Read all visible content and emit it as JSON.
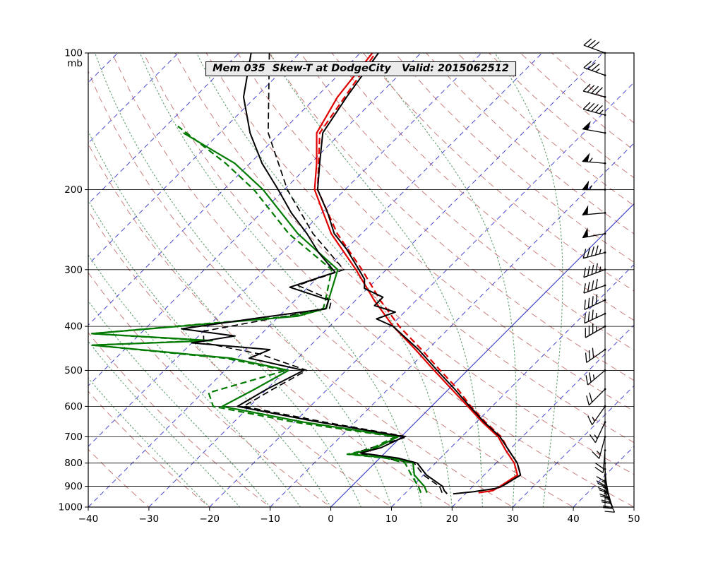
{
  "title": "Mem 035  Skew-T at DodgeCity   Valid: 2015062512",
  "axes": {
    "pressure_unit": "mb",
    "pressure_ticks": [
      100,
      200,
      300,
      400,
      500,
      600,
      700,
      800,
      900,
      1000
    ],
    "temp_ticks": [
      -40,
      -30,
      -20,
      -10,
      0,
      10,
      20,
      30,
      40,
      50
    ],
    "pressure_range": [
      100,
      1000
    ],
    "temp_range_c": [
      -40,
      50
    ],
    "skew_degrees": 45
  },
  "style": {
    "background": "#ffffff",
    "border_color": "#000000",
    "isotherm_color": "#4848d0",
    "dry_adiabat_color": "#c47272",
    "moist_adiabat_color": "#5f9e6e",
    "pressure_line_color": "#000000",
    "temperature_color": "#e00000",
    "dewpoint_color": "#007a00",
    "member_black_color": "#000000"
  },
  "background_lines": {
    "isotherms_c": [
      -110,
      -100,
      -90,
      -80,
      -70,
      -60,
      -50,
      -40,
      -30,
      -20,
      -10,
      0,
      10,
      20,
      30,
      40,
      50
    ],
    "isotherm_solid_c": 0,
    "dry_adiabats_c": [
      -30,
      -20,
      -10,
      0,
      10,
      20,
      30,
      40,
      50,
      60,
      70,
      80,
      90,
      100,
      110,
      120,
      130,
      140,
      150,
      160,
      170,
      180
    ],
    "moist_adiabats_c": [
      -20,
      -15,
      -10,
      -5,
      0,
      5,
      10,
      15,
      20,
      25,
      30,
      35
    ]
  },
  "chart_data": {
    "type": "line",
    "variant": "skew-t-log-p",
    "title": "Mem 035  Skew-T at DodgeCity   Valid: 2015062512",
    "xlabel_ticks_c": [
      -40,
      -30,
      -20,
      -10,
      0,
      10,
      20,
      30,
      40,
      50
    ],
    "ylabel_ticks_mb": [
      100,
      200,
      300,
      400,
      500,
      600,
      700,
      800,
      900,
      1000
    ],
    "series": [
      {
        "name": "temperature-mem035-solid",
        "color": "#e00000",
        "style": "solid",
        "points": [
          [
            930,
            22
          ],
          [
            920,
            24
          ],
          [
            900,
            24.5
          ],
          [
            850,
            25.5
          ],
          [
            800,
            23.0
          ],
          [
            750,
            19.5
          ],
          [
            700,
            16.0
          ],
          [
            650,
            11.0
          ],
          [
            600,
            6.0
          ],
          [
            550,
            0.5
          ],
          [
            500,
            -5.5
          ],
          [
            450,
            -12.0
          ],
          [
            400,
            -19.5
          ],
          [
            350,
            -27.0
          ],
          [
            300,
            -35.0
          ],
          [
            250,
            -45.0
          ],
          [
            200,
            -55.0
          ],
          [
            175,
            -59.0
          ],
          [
            150,
            -64.0
          ],
          [
            125,
            -66.5
          ],
          [
            100,
            -68.0
          ]
        ]
      },
      {
        "name": "temperature-mem035-dashed",
        "color": "#e00000",
        "style": "dashed",
        "points": [
          [
            925,
            23.5
          ],
          [
            900,
            24.8
          ],
          [
            850,
            26.0
          ],
          [
            800,
            23.5
          ],
          [
            750,
            20.0
          ],
          [
            700,
            16.5
          ],
          [
            650,
            11.5
          ],
          [
            600,
            6.5
          ],
          [
            550,
            1.5
          ],
          [
            500,
            -4.5
          ],
          [
            450,
            -11.0
          ],
          [
            400,
            -18.5
          ],
          [
            350,
            -26.0
          ],
          [
            300,
            -34.0
          ],
          [
            250,
            -44.0
          ],
          [
            200,
            -54.5
          ],
          [
            150,
            -63.5
          ],
          [
            100,
            -67.5
          ]
        ]
      },
      {
        "name": "dewpoint-mem035-solid",
        "color": "#007a00",
        "style": "solid",
        "points": [
          [
            930,
            13.5
          ],
          [
            900,
            12.0
          ],
          [
            850,
            8.5
          ],
          [
            800,
            6.3
          ],
          [
            780,
            2.0
          ],
          [
            765,
            -5.5
          ],
          [
            745,
            -2.5
          ],
          [
            700,
            -0.5
          ],
          [
            650,
            -18.5
          ],
          [
            600,
            -34.5
          ],
          [
            550,
            -32.0
          ],
          [
            500,
            -29.5
          ],
          [
            470,
            -41.0
          ],
          [
            440,
            -66.0
          ],
          [
            430,
            -47.0
          ],
          [
            415,
            -68.0
          ],
          [
            380,
            -37.0
          ],
          [
            365,
            -33.5
          ],
          [
            350,
            -34.5
          ],
          [
            300,
            -38.0
          ],
          [
            250,
            -50.5
          ],
          [
            200,
            -63.5
          ],
          [
            175,
            -72.5
          ],
          [
            150,
            -86.0
          ]
        ]
      },
      {
        "name": "dewpoint-mem035-dashed",
        "color": "#007a00",
        "style": "dashed",
        "points": [
          [
            930,
            12.5
          ],
          [
            900,
            11.0
          ],
          [
            850,
            8.0
          ],
          [
            800,
            5.0
          ],
          [
            780,
            1.0
          ],
          [
            765,
            -6.0
          ],
          [
            745,
            -3.0
          ],
          [
            700,
            -1.0
          ],
          [
            650,
            -20.0
          ],
          [
            600,
            -36.0
          ],
          [
            560,
            -39.0
          ],
          [
            520,
            -33.0
          ],
          [
            500,
            -30.0
          ],
          [
            470,
            -42.0
          ],
          [
            440,
            -66.0
          ],
          [
            430,
            -48.0
          ],
          [
            415,
            -68.0
          ],
          [
            380,
            -38.0
          ],
          [
            365,
            -34.0
          ],
          [
            350,
            -35.0
          ],
          [
            300,
            -39.0
          ],
          [
            250,
            -52.0
          ],
          [
            200,
            -65.0
          ],
          [
            175,
            -74.0
          ],
          [
            145,
            -88.0
          ]
        ]
      },
      {
        "name": "temperature-black-solid",
        "color": "#000000",
        "style": "solid",
        "points": [
          [
            935,
            18
          ],
          [
            925,
            21
          ],
          [
            910,
            24
          ],
          [
            900,
            24.8
          ],
          [
            850,
            26.0
          ],
          [
            800,
            23.5
          ],
          [
            750,
            20.0
          ],
          [
            700,
            16.3
          ],
          [
            650,
            11.3
          ],
          [
            600,
            6.3
          ],
          [
            550,
            1.0
          ],
          [
            500,
            -5.0
          ],
          [
            450,
            -11.5
          ],
          [
            400,
            -19.5
          ],
          [
            385,
            -23.5
          ],
          [
            372,
            -21.5
          ],
          [
            360,
            -26.0
          ],
          [
            345,
            -26.0
          ],
          [
            330,
            -30.5
          ],
          [
            315,
            -32.0
          ],
          [
            300,
            -34.5
          ],
          [
            270,
            -40.0
          ],
          [
            250,
            -44.5
          ],
          [
            225,
            -49.0
          ],
          [
            200,
            -54.5
          ],
          [
            175,
            -58.5
          ],
          [
            150,
            -63.0
          ],
          [
            125,
            -65.0
          ],
          [
            100,
            -67.0
          ]
        ]
      },
      {
        "name": "dewpoint-black-solid",
        "color": "#000000",
        "style": "solid",
        "points": [
          [
            935,
            17
          ],
          [
            920,
            16
          ],
          [
            900,
            15
          ],
          [
            850,
            10.5
          ],
          [
            800,
            7.0
          ],
          [
            780,
            3.0
          ],
          [
            760,
            -4.0
          ],
          [
            740,
            -1.5
          ],
          [
            700,
            0.5
          ],
          [
            650,
            -16.0
          ],
          [
            600,
            -32.0
          ],
          [
            550,
            -30.0
          ],
          [
            500,
            -27.0
          ],
          [
            470,
            -38.0
          ],
          [
            450,
            -36.0
          ],
          [
            435,
            -50.0
          ],
          [
            420,
            -44.0
          ],
          [
            405,
            -54.0
          ],
          [
            383,
            -43.0
          ],
          [
            366,
            -33.5
          ],
          [
            350,
            -34.5
          ],
          [
            328,
            -43.0
          ],
          [
            304,
            -38.0
          ],
          [
            275,
            -44.0
          ],
          [
            250,
            -49.0
          ],
          [
            225,
            -55.0
          ],
          [
            200,
            -61.0
          ],
          [
            175,
            -68.0
          ],
          [
            150,
            -75.0
          ],
          [
            125,
            -82.0
          ],
          [
            100,
            -88.0
          ]
        ]
      },
      {
        "name": "dewpoint-black-dashed",
        "color": "#000000",
        "style": "dashed",
        "points": [
          [
            930,
            16
          ],
          [
            900,
            14.5
          ],
          [
            850,
            10.0
          ],
          [
            800,
            6.5
          ],
          [
            760,
            -5.0
          ],
          [
            700,
            1.0
          ],
          [
            650,
            -15.0
          ],
          [
            600,
            -31.0
          ],
          [
            550,
            -29.0
          ],
          [
            500,
            -26.5
          ],
          [
            460,
            -37.0
          ],
          [
            435,
            -48.0
          ],
          [
            410,
            -50.0
          ],
          [
            385,
            -41.0
          ],
          [
            365,
            -33.0
          ],
          [
            350,
            -34.0
          ],
          [
            325,
            -42.0
          ],
          [
            300,
            -37.0
          ],
          [
            250,
            -48.0
          ],
          [
            200,
            -59.5
          ],
          [
            150,
            -72.0
          ],
          [
            100,
            -85.0
          ]
        ]
      }
    ],
    "wind_barbs": [
      {
        "p": 100,
        "dir": 290,
        "spd": 30
      },
      {
        "p": 112,
        "dir": 290,
        "spd": 35
      },
      {
        "p": 125,
        "dir": 285,
        "spd": 40
      },
      {
        "p": 137,
        "dir": 285,
        "spd": 45
      },
      {
        "p": 150,
        "dir": 280,
        "spd": 50
      },
      {
        "p": 175,
        "dir": 275,
        "spd": 55
      },
      {
        "p": 200,
        "dir": 270,
        "spd": 55
      },
      {
        "p": 225,
        "dir": 265,
        "spd": 50
      },
      {
        "p": 250,
        "dir": 260,
        "spd": 50
      },
      {
        "p": 275,
        "dir": 255,
        "spd": 45
      },
      {
        "p": 300,
        "dir": 250,
        "spd": 45
      },
      {
        "p": 325,
        "dir": 250,
        "spd": 40
      },
      {
        "p": 350,
        "dir": 245,
        "spd": 40
      },
      {
        "p": 375,
        "dir": 245,
        "spd": 35
      },
      {
        "p": 400,
        "dir": 240,
        "spd": 35
      },
      {
        "p": 450,
        "dir": 235,
        "spd": 30
      },
      {
        "p": 500,
        "dir": 230,
        "spd": 25
      },
      {
        "p": 550,
        "dir": 225,
        "spd": 20
      },
      {
        "p": 600,
        "dir": 215,
        "spd": 15
      },
      {
        "p": 650,
        "dir": 205,
        "spd": 15
      },
      {
        "p": 700,
        "dir": 195,
        "spd": 15
      },
      {
        "p": 750,
        "dir": 185,
        "spd": 20
      },
      {
        "p": 800,
        "dir": 180,
        "spd": 20
      },
      {
        "p": 825,
        "dir": 175,
        "spd": 25
      },
      {
        "p": 850,
        "dir": 170,
        "spd": 25
      },
      {
        "p": 875,
        "dir": 165,
        "spd": 25
      },
      {
        "p": 900,
        "dir": 160,
        "spd": 25
      },
      {
        "p": 925,
        "dir": 155,
        "spd": 20
      }
    ]
  }
}
